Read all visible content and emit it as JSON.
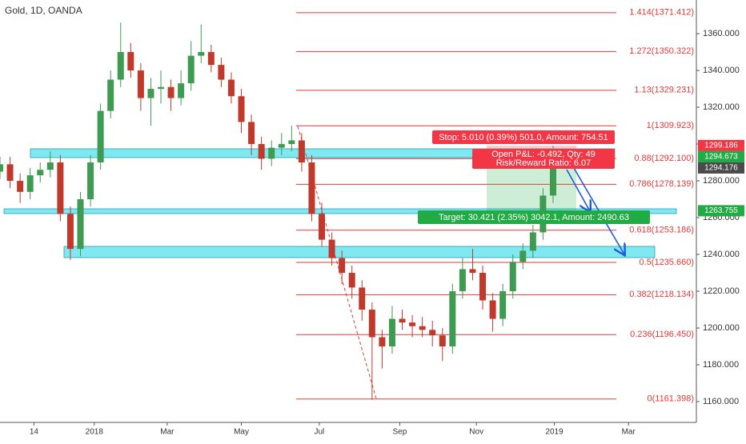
{
  "chart_data": {
    "type": "candlestick",
    "title": "Gold, 1D, OANDA",
    "xlim": [
      -75,
      479
    ],
    "ylim": [
      1148.7,
      1378.3
    ],
    "xticks": [
      {
        "value": -48,
        "label": "14"
      },
      {
        "value": 0,
        "label": "2018"
      },
      {
        "value": 58,
        "label": "Mar"
      },
      {
        "value": 117,
        "label": "May"
      },
      {
        "value": 179,
        "label": "Jul"
      },
      {
        "value": 243,
        "label": "Sep"
      },
      {
        "value": 304,
        "label": "Nov"
      },
      {
        "value": 366,
        "label": "2019"
      },
      {
        "value": 425,
        "label": "Mar"
      }
    ],
    "yticks": [
      {
        "value": 1160,
        "label": "1160.000"
      },
      {
        "value": 1180,
        "label": "1180.000"
      },
      {
        "value": 1200,
        "label": "1200.000"
      },
      {
        "value": 1220,
        "label": "1220.000"
      },
      {
        "value": 1240,
        "label": "1240.000"
      },
      {
        "value": 1260,
        "label": "1260.000"
      },
      {
        "value": 1280,
        "label": "1280.000"
      },
      {
        "value": 1300,
        "label": "1300.000"
      },
      {
        "value": 1320,
        "label": "1320.000"
      },
      {
        "value": 1340,
        "label": "1340.000"
      },
      {
        "value": 1360,
        "label": "1360.000"
      }
    ],
    "grid": false,
    "up_color": "#3f9a52",
    "down_color": "#c0392b",
    "candles": {
      "x": [
        -75,
        -67,
        -59,
        -51,
        -43,
        -35,
        -27,
        -19,
        -11,
        -3,
        5,
        13,
        21,
        29,
        37,
        45,
        53,
        61,
        69,
        77,
        85,
        93,
        101,
        109,
        117,
        125,
        133,
        141,
        149,
        157,
        165,
        173,
        181,
        189,
        197,
        205,
        213,
        221,
        229,
        237,
        245,
        253,
        261,
        269,
        277,
        285,
        293,
        301,
        309,
        317,
        325,
        333,
        341,
        349,
        357,
        365
      ],
      "open": [
        1285,
        1289,
        1280,
        1274,
        1283,
        1286,
        1290,
        1262,
        1243,
        1270,
        1290,
        1318,
        1335,
        1350,
        1340,
        1325,
        1330,
        1331,
        1325,
        1333,
        1348,
        1350,
        1343,
        1335,
        1326,
        1312,
        1300,
        1292,
        1298,
        1300,
        1302,
        1290,
        1262,
        1248,
        1238,
        1230,
        1222,
        1210,
        1195,
        1190,
        1205,
        1203,
        1201,
        1199,
        1196,
        1190,
        1220,
        1232,
        1230,
        1215,
        1205,
        1220,
        1236,
        1242,
        1252,
        1272
      ],
      "high": [
        1293,
        1293,
        1284,
        1287,
        1290,
        1296,
        1294,
        1266,
        1274,
        1294,
        1322,
        1340,
        1366,
        1355,
        1344,
        1336,
        1340,
        1335,
        1340,
        1356,
        1365,
        1354,
        1347,
        1339,
        1330,
        1316,
        1304,
        1302,
        1306,
        1310,
        1306,
        1294,
        1268,
        1252,
        1242,
        1234,
        1226,
        1214,
        1199,
        1212,
        1210,
        1207,
        1206,
        1204,
        1200,
        1224,
        1238,
        1243,
        1234,
        1219,
        1224,
        1240,
        1246,
        1256,
        1276,
        1299
      ],
      "low": [
        1281,
        1276,
        1268,
        1270,
        1279,
        1282,
        1258,
        1237,
        1239,
        1266,
        1286,
        1314,
        1331,
        1336,
        1318,
        1310,
        1322,
        1318,
        1321,
        1329,
        1344,
        1339,
        1331,
        1322,
        1306,
        1294,
        1286,
        1288,
        1294,
        1296,
        1285,
        1258,
        1244,
        1234,
        1224,
        1216,
        1204,
        1161,
        1178,
        1186,
        1199,
        1195,
        1195,
        1190,
        1182,
        1186,
        1216,
        1226,
        1210,
        1198,
        1201,
        1216,
        1232,
        1238,
        1248,
        1268
      ],
      "close": [
        1289,
        1280,
        1274,
        1283,
        1286,
        1290,
        1262,
        1243,
        1270,
        1290,
        1318,
        1335,
        1350,
        1340,
        1325,
        1330,
        1331,
        1325,
        1333,
        1348,
        1350,
        1343,
        1335,
        1326,
        1312,
        1300,
        1292,
        1298,
        1300,
        1302,
        1290,
        1262,
        1248,
        1238,
        1230,
        1222,
        1210,
        1195,
        1190,
        1205,
        1203,
        1201,
        1199,
        1196,
        1190,
        1220,
        1232,
        1230,
        1215,
        1205,
        1220,
        1236,
        1242,
        1252,
        1272,
        1294
      ]
    },
    "fib_color": "#e53935",
    "fib_levels": [
      {
        "value": 1371.412,
        "label": "1.414(1371.412)"
      },
      {
        "value": 1350.322,
        "label": "1.272(1350.322)"
      },
      {
        "value": 1329.231,
        "label": "1.13(1329.231)"
      },
      {
        "value": 1309.923,
        "label": "1(1309.923)"
      },
      {
        "value": 1292.1,
        "label": "0.88(1292.100)"
      },
      {
        "value": 1278.139,
        "label": "0.786(1278.139)"
      },
      {
        "value": 1253.186,
        "label": "0.618(1253.186)"
      },
      {
        "value": 1235.66,
        "label": "0.5(1235.660)"
      },
      {
        "value": 1218.134,
        "label": "0.382(1218.134)"
      },
      {
        "value": 1196.45,
        "label": "0.236(1196.450)"
      },
      {
        "value": 1161.398,
        "label": "0(1161.398)"
      }
    ],
    "price_tags": [
      {
        "value": 1299.186,
        "color": "#f23645"
      },
      {
        "value": 1294.673,
        "color": "#22ab44"
      },
      {
        "value": 1294.176,
        "color": "#4a4a4a"
      },
      {
        "value": 1263.755,
        "color": "#22ab44"
      }
    ],
    "annotations": {
      "stop": "Stop: 5.010 (0.39%) 501.0, Amount: 754.51",
      "open_pl": "Open P&L: -0.492, Qty: 49",
      "risk_reward": "Risk/Reward Ratio: 6.07",
      "target": "Target: 30.421 (2.35%) 3042.1, Amount: 2490.63"
    }
  }
}
